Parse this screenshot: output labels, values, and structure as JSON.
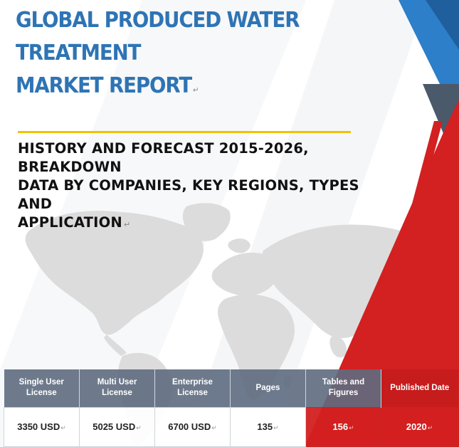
{
  "report": {
    "title_line1": "GLOBAL PRODUCED WATER TREATMENT",
    "title_line2": "MARKET REPORT",
    "subtitle_line1": "HISTORY AND FORECAST 2015-2026, BREAKDOWN",
    "subtitle_line2": "DATA BY COMPANIES, KEY REGIONS, TYPES AND",
    "subtitle_line3": "APPLICATION"
  },
  "table": {
    "headers": [
      "Single User License",
      "Multi User License",
      "Enterprise License",
      "Pages",
      "Tables and Figures",
      "Published Date"
    ],
    "values": [
      "3350 USD",
      "5025 USD",
      "6700 USD",
      "135",
      "156",
      "2020"
    ]
  },
  "marks": {
    "paragraph": "↵"
  },
  "colors": {
    "title_blue": "#2e74b5",
    "accent_yellow": "#f2c200",
    "accent_red": "#d32020",
    "accent_blue": "#2c7fc8",
    "accent_slate": "#4a5a6a",
    "header_gray": "#5e6c80"
  },
  "decor": {
    "background": "world-map-graphic",
    "corner_shapes": "blue-red-diagonal-stripes"
  }
}
